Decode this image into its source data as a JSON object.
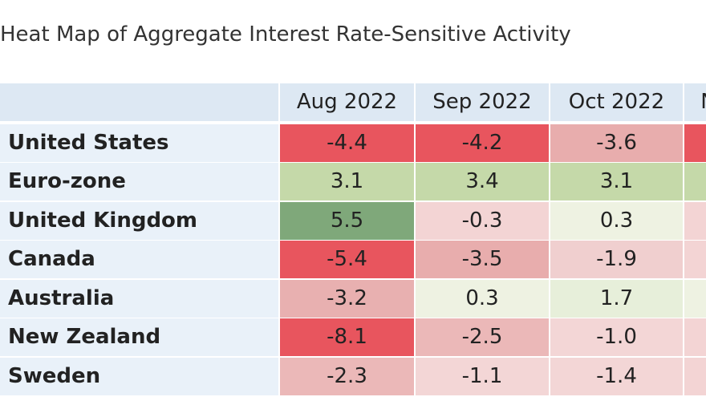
{
  "title": "Heat Map of Aggregate Interest Rate-Sensitive Activity",
  "table": {
    "columns": [
      "Aug 2022",
      "Sep 2022",
      "Oct 2022",
      "N"
    ],
    "rows": [
      {
        "label": "United States",
        "values": [
          "-4.4",
          "-4.2",
          "-3.6"
        ],
        "colors": [
          "#e8555e",
          "#e8555e",
          "#e8adad",
          "#e8555e"
        ]
      },
      {
        "label": "Euro-zone",
        "values": [
          "3.1",
          "3.4",
          "3.1"
        ],
        "colors": [
          "#c5d9a9",
          "#c5d9a9",
          "#c5d9a9",
          "#c5d9a9"
        ]
      },
      {
        "label": "United Kingdom",
        "values": [
          "5.5",
          "-0.3",
          "0.3"
        ],
        "colors": [
          "#7fa87a",
          "#f3d4d4",
          "#eef2e2",
          "#f3d4d4"
        ]
      },
      {
        "label": "Canada",
        "values": [
          "-5.4",
          "-3.5",
          "-1.9"
        ],
        "colors": [
          "#e8555e",
          "#e8adad",
          "#f0cfcf",
          "#f3d4d4"
        ]
      },
      {
        "label": "Australia",
        "values": [
          "-3.2",
          "0.3",
          "1.7"
        ],
        "colors": [
          "#e8b0b0",
          "#eef2e2",
          "#e7efda",
          "#eef2e2"
        ]
      },
      {
        "label": "New Zealand",
        "values": [
          "-8.1",
          "-2.5",
          "-1.0"
        ],
        "colors": [
          "#e8555e",
          "#ebb8b8",
          "#f3d6d6",
          "#f3d4d4"
        ]
      },
      {
        "label": "Sweden",
        "values": [
          "-2.3",
          "-1.1",
          "-1.4"
        ],
        "colors": [
          "#ebb8b8",
          "#f3d6d6",
          "#f3d6d6",
          "#f3d4d4"
        ]
      }
    ]
  }
}
